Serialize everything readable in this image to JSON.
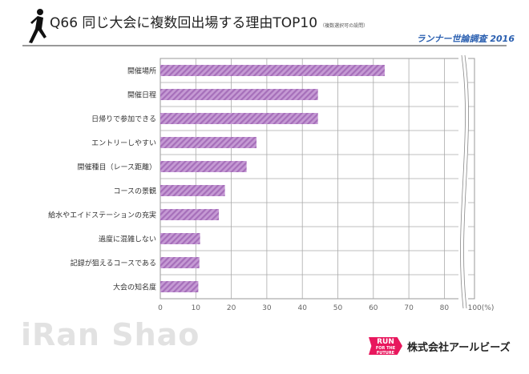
{
  "header": {
    "title": "Q66 同じ大会に複数回出場する理由TOP10",
    "note": "（複数選択可の設問）",
    "survey": "ランナー世論調査 2016"
  },
  "footer": {
    "watermark": "iRan Shao",
    "logo_text": "RUN",
    "logo_sub": "FOR THE FUTURE",
    "company": "株式会社アールビーズ"
  },
  "chart_data": {
    "type": "bar",
    "orientation": "horizontal",
    "categories": [
      "開催場所",
      "開催日程",
      "日帰りで参加できる",
      "エントリーしやすい",
      "開催種目（レース距離）",
      "コースの景観",
      "給水やエイドステーションの充実",
      "過度に混雑しない",
      "記録が狙えるコースである",
      "大会の知名度"
    ],
    "values": [
      63.2,
      44.4,
      44.4,
      27.1,
      24.3,
      18.2,
      16.5,
      11.2,
      11.0,
      10.7
    ],
    "xticks": [
      "0",
      "10",
      "20",
      "30",
      "40",
      "50",
      "60",
      "70",
      "80",
      "100(%)"
    ],
    "xlim": [
      0,
      100
    ],
    "axis_break": [
      80,
      100
    ],
    "grid": true,
    "bar_color": "#c59ad4",
    "stripe_color": "#a66fba"
  }
}
